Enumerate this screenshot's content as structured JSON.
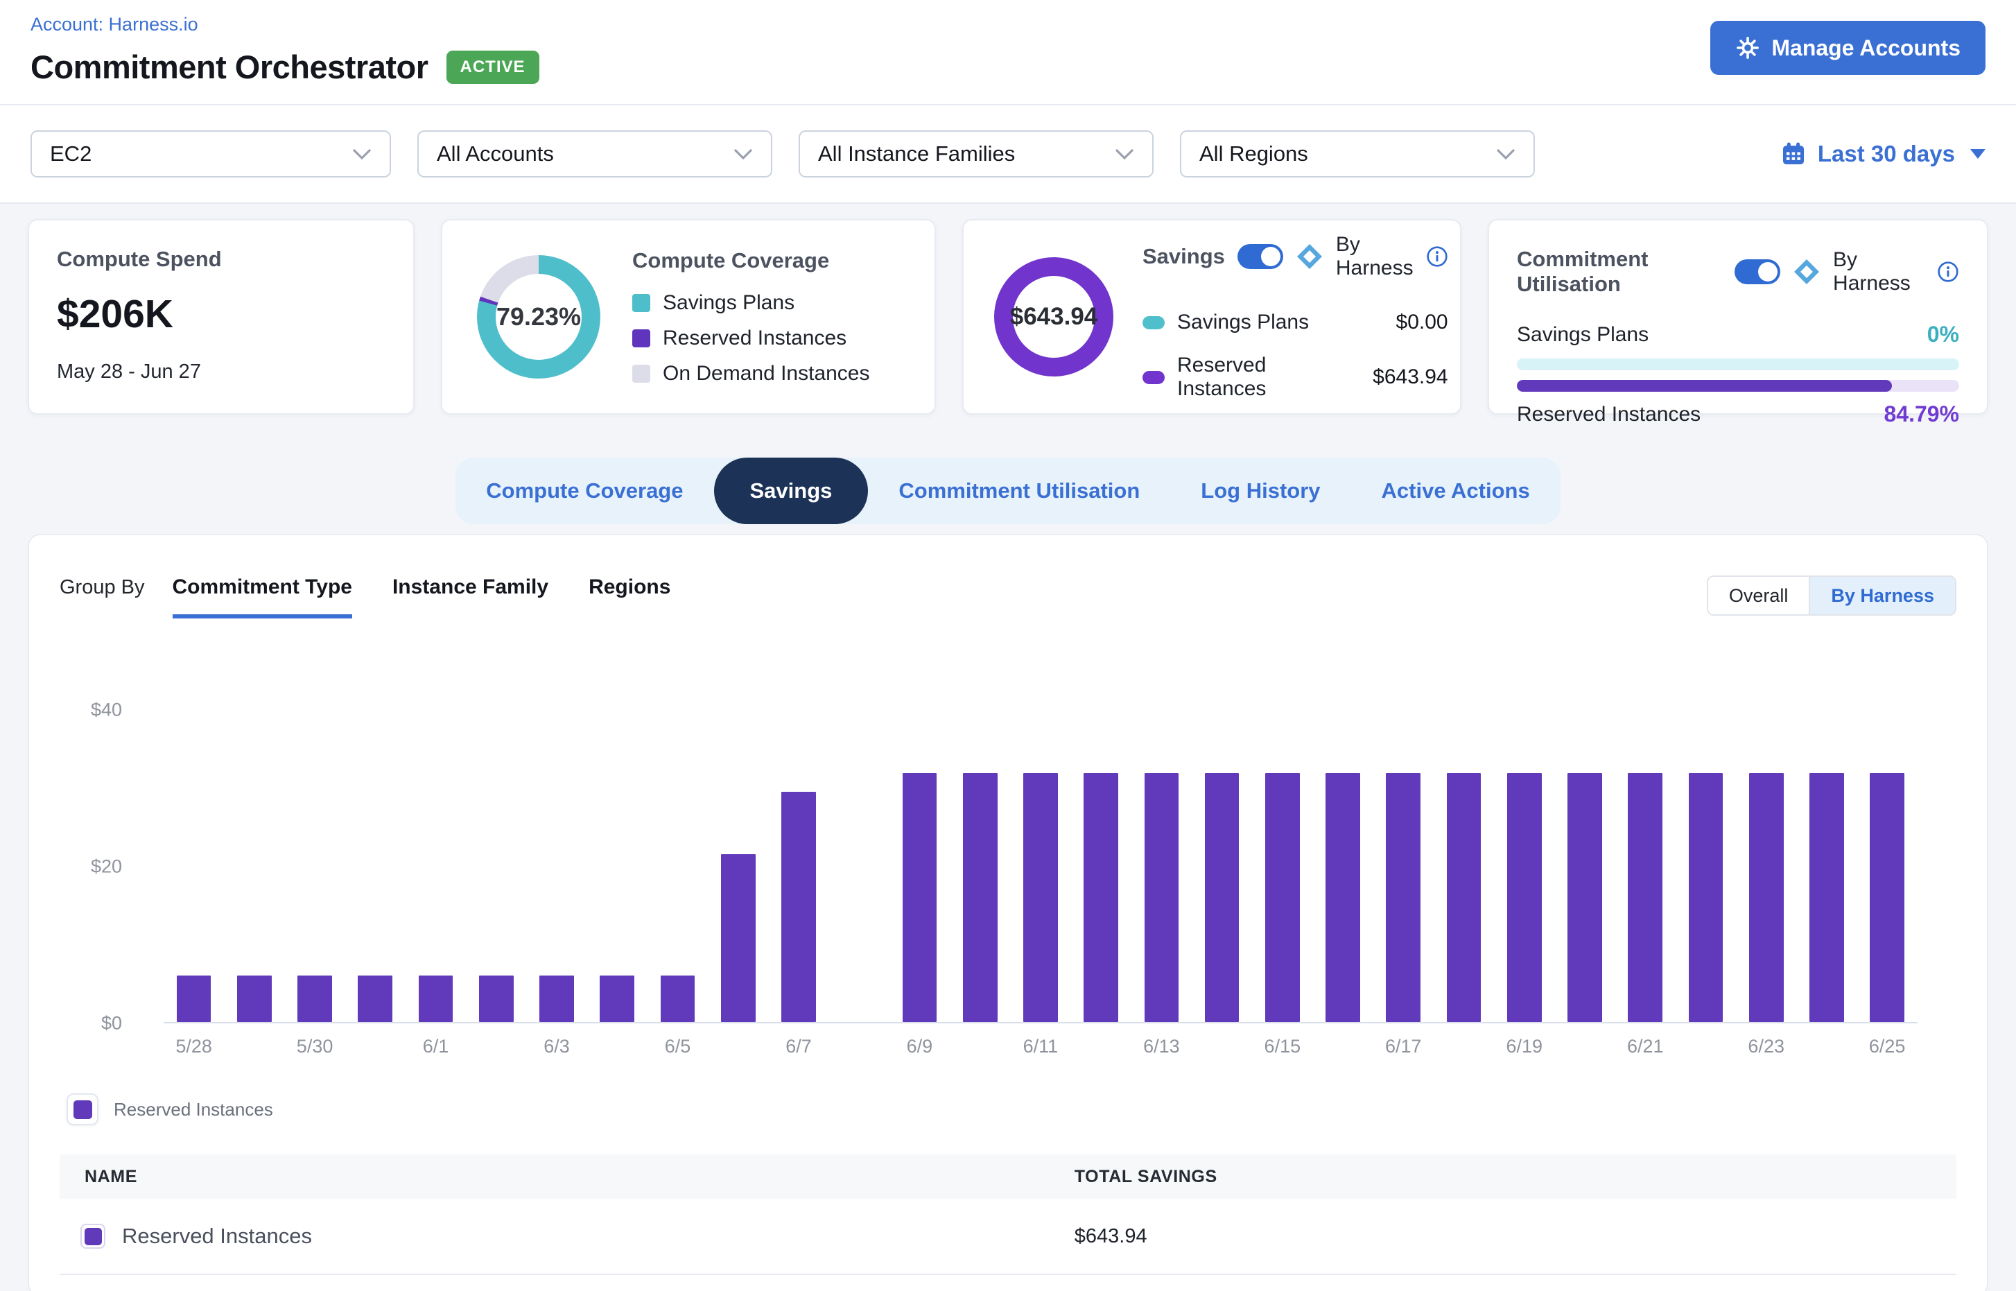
{
  "header": {
    "account_label": "Account: Harness.io",
    "title": "Commitment Orchestrator",
    "status_badge": "ACTIVE",
    "manage_accounts_label": "Manage Accounts"
  },
  "filters": {
    "service": "EC2",
    "accounts": "All Accounts",
    "instance_families": "All Instance Families",
    "regions": "All Regions",
    "date_range_label": "Last 30 days"
  },
  "cards": {
    "compute_spend": {
      "title": "Compute Spend",
      "value": "$206K",
      "period": "May 28 - Jun 27"
    },
    "compute_coverage": {
      "title": "Compute Coverage",
      "donut_label": "79.23%",
      "segments": [
        {
          "label": "Savings Plans",
          "pct": 79.23,
          "color": "#4FBECB"
        },
        {
          "label": "Reserved Instances",
          "pct": 1.1,
          "color": "#5F35BE"
        },
        {
          "label": "On Demand Instances",
          "pct": 19.67,
          "color": "#DCDDE8"
        }
      ]
    },
    "savings": {
      "title": "Savings",
      "toggle_label": "By Harness",
      "donut_label": "$643.94",
      "donut_color": "#7134CC",
      "rows": [
        {
          "label": "Savings Plans",
          "value": "$0.00",
          "color": "#4FC0CB"
        },
        {
          "label": "Reserved Instances",
          "value": "$643.94",
          "color": "#7134CC"
        }
      ]
    },
    "commitment_utilisation": {
      "title": "Commitment Utilisation",
      "toggle_label": "By Harness",
      "rows": [
        {
          "label": "Savings Plans",
          "value": "0%",
          "pct": 0,
          "bar_color": "#49BCC8",
          "track_color": "#D8F3F7",
          "value_color": "#3BAFBF"
        },
        {
          "label": "Reserved Instances",
          "value": "84.79%",
          "pct": 84.79,
          "bar_color": "#6139BB",
          "track_color": "#EAE3F8",
          "value_color": "#6F3BD1"
        }
      ]
    }
  },
  "tabs": {
    "items": [
      "Compute Coverage",
      "Savings",
      "Commitment Utilisation",
      "Log History",
      "Active Actions"
    ],
    "active": "Savings"
  },
  "panel": {
    "group_by_label": "Group By",
    "group_tabs": [
      "Commitment Type",
      "Instance Family",
      "Regions"
    ],
    "active_group_tab": "Commitment Type",
    "view_toggle": [
      "Overall",
      "By Harness"
    ],
    "active_view": "By Harness",
    "legend": [
      {
        "label": "Reserved Instances",
        "color": "#6139BB"
      }
    ],
    "table": {
      "columns": [
        "NAME",
        "TOTAL SAVINGS"
      ],
      "rows": [
        {
          "name": "Reserved Instances",
          "total_savings": "$643.94",
          "color": "#6139BB"
        }
      ]
    }
  },
  "chart_data": {
    "type": "bar",
    "title": "",
    "xlabel": "",
    "ylabel": "",
    "ylim": [
      0,
      40
    ],
    "grid": false,
    "legend_position": "bottom-left",
    "y_ticks": [
      {
        "label": "$0",
        "value": 0
      },
      {
        "label": "$20",
        "value": 20
      },
      {
        "label": "$40",
        "value": 40
      }
    ],
    "x": [
      "5/28",
      "5/29",
      "5/30",
      "5/31",
      "6/1",
      "6/2",
      "6/3",
      "6/4",
      "6/5",
      "6/6",
      "6/7",
      "6/8",
      "6/9",
      "6/10",
      "6/11",
      "6/12",
      "6/13",
      "6/14",
      "6/15",
      "6/16",
      "6/17",
      "6/18",
      "6/19",
      "6/20",
      "6/21",
      "6/22",
      "6/23",
      "6/24",
      "6/25"
    ],
    "x_tick_labels": [
      "5/28",
      "5/30",
      "6/1",
      "6/3",
      "6/5",
      "6/7",
      "6/9",
      "6/11",
      "6/13",
      "6/15",
      "6/17",
      "6/19",
      "6/21",
      "6/23",
      "6/25"
    ],
    "series": [
      {
        "name": "Reserved Instances",
        "color": "#6139BB",
        "values": [
          5.9,
          5.9,
          5.9,
          5.9,
          5.9,
          5.9,
          5.9,
          5.9,
          5.9,
          21.4,
          29.4,
          0,
          31.77,
          31.77,
          31.77,
          31.77,
          31.77,
          31.77,
          31.77,
          31.77,
          31.77,
          31.77,
          31.77,
          31.77,
          31.77,
          31.77,
          31.77,
          31.77,
          31.77
        ]
      }
    ]
  }
}
